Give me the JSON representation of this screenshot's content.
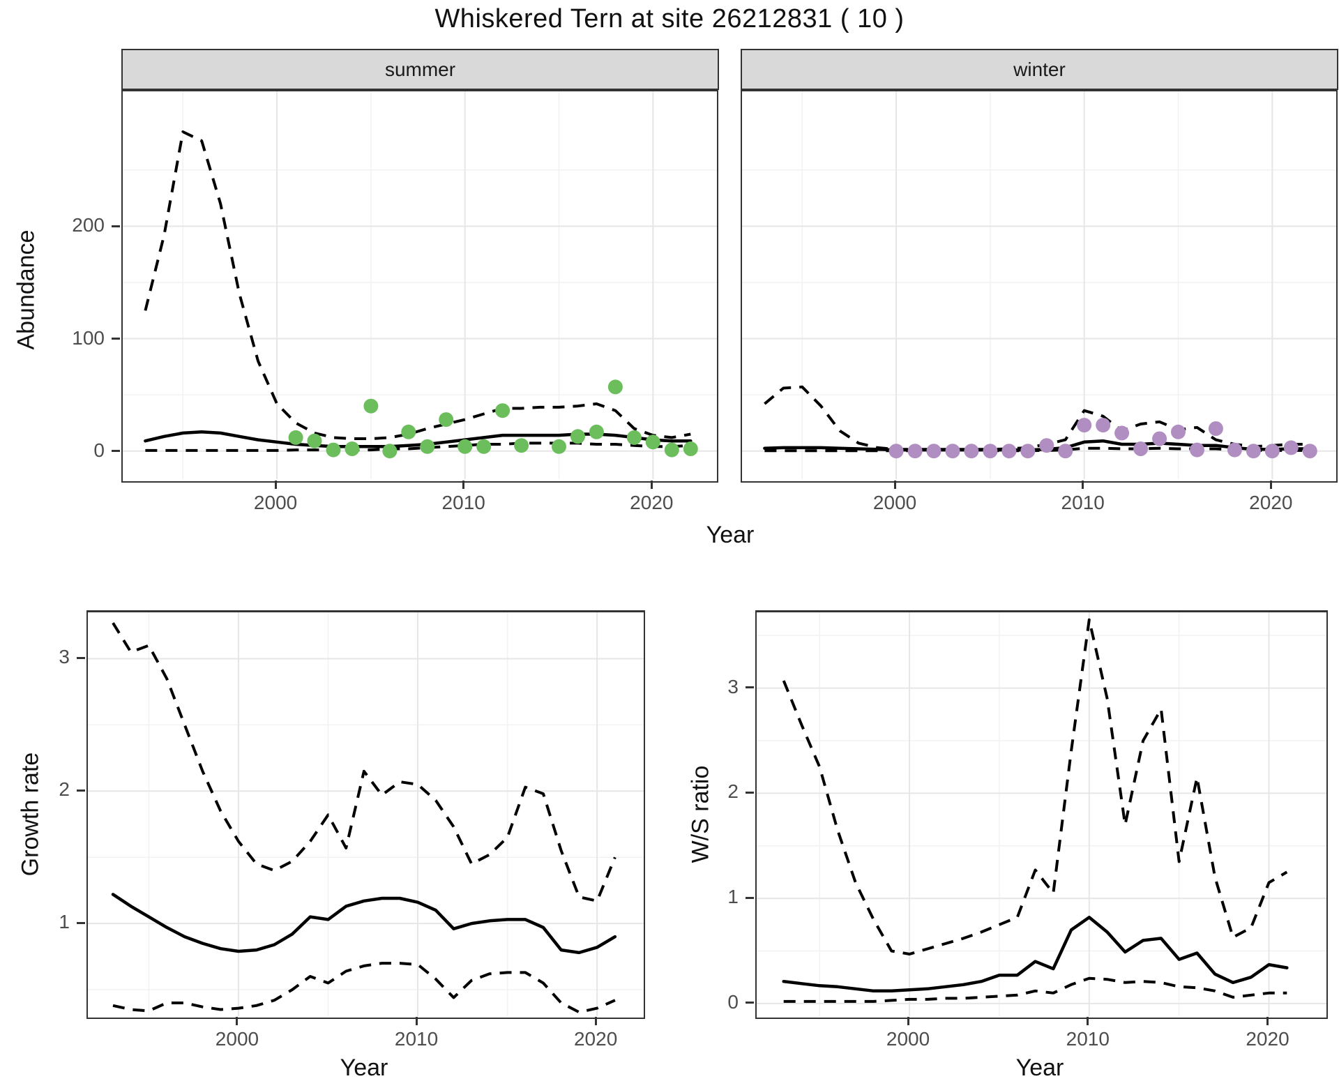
{
  "title": "Whiskered Tern at site 26212831 ( 10 )",
  "colors": {
    "summer_point": "#6BBE5B",
    "winter_point": "#B18EC1",
    "line": "#000000",
    "strip_background": "#D9D9D9",
    "panel_border": "#333333",
    "grid_major": "#E6E6E6",
    "grid_minor": "#F2F2F2",
    "tick_label": "#4D4D4D"
  },
  "facets": [
    {
      "label": "summer"
    },
    {
      "label": "winter"
    }
  ],
  "axes": {
    "abundance": {
      "label": "Abundance",
      "ticks": [
        "0",
        "100",
        "200"
      ],
      "tick_values": [
        0,
        100,
        200
      ]
    },
    "year_top": {
      "label": "Year",
      "ticks": [
        "2000",
        "2010",
        "2020"
      ],
      "tick_values": [
        2000,
        2010,
        2020
      ]
    },
    "growth": {
      "label": "Growth rate",
      "ticks": [
        "1",
        "2",
        "3"
      ],
      "tick_values": [
        1,
        2,
        3
      ]
    },
    "ws": {
      "label": "W/S ratio",
      "ticks": [
        "0",
        "1",
        "2",
        "3"
      ],
      "tick_values": [
        0,
        1,
        2,
        3
      ]
    },
    "year_growth": {
      "label": "Year",
      "ticks": [
        "2000",
        "2010",
        "2020"
      ],
      "tick_values": [
        2000,
        2010,
        2020
      ]
    },
    "year_ws": {
      "label": "Year",
      "ticks": [
        "2000",
        "2010",
        "2020"
      ],
      "tick_values": [
        2000,
        2010,
        2020
      ]
    }
  },
  "chart_data": [
    {
      "type": "line",
      "facet": "summer",
      "title": "Abundance, summer",
      "xlabel": "Year",
      "ylabel": "Abundance",
      "xlim": [
        1991.8,
        2023.4
      ],
      "ylim": [
        -25,
        320
      ],
      "x_major": [
        2000,
        2010,
        2020
      ],
      "x_minor": [
        1995,
        2005,
        2015
      ],
      "y_major": [
        0,
        100,
        200
      ],
      "y_minor": [
        50,
        150,
        250
      ],
      "x": [
        1993,
        1994,
        1995,
        1996,
        1997,
        1998,
        1999,
        2000,
        2001,
        2002,
        2003,
        2004,
        2005,
        2006,
        2007,
        2008,
        2009,
        2010,
        2011,
        2012,
        2013,
        2014,
        2015,
        2016,
        2017,
        2018,
        2019,
        2020,
        2021,
        2022
      ],
      "series": [
        {
          "name": "upper_ci",
          "style": "dashed",
          "values": [
            125,
            192,
            284,
            276,
            220,
            140,
            80,
            42,
            25,
            16,
            12,
            11,
            11,
            12,
            15,
            20,
            24,
            28,
            33,
            38,
            38,
            39,
            39,
            40,
            42,
            36,
            20,
            14,
            12,
            15
          ]
        },
        {
          "name": "mean",
          "style": "solid",
          "values": [
            9,
            13,
            16,
            17,
            16,
            13,
            10,
            8,
            6,
            5,
            4,
            4,
            4,
            4,
            5,
            6,
            8,
            10,
            12,
            14,
            14,
            14,
            14,
            15,
            15,
            14,
            12,
            10,
            9,
            9
          ]
        },
        {
          "name": "lower_ci",
          "style": "dashed",
          "values": [
            0.5,
            0.5,
            0.5,
            0.5,
            0.5,
            0.5,
            0.5,
            0.5,
            1,
            1,
            1,
            1,
            1,
            2,
            2,
            3,
            4,
            5,
            6,
            6,
            7,
            7,
            7,
            7,
            6,
            6,
            5,
            4,
            4,
            5
          ]
        }
      ],
      "points": {
        "name": "observed-counts-summer",
        "color": "#6BBE5B",
        "x": [
          2001,
          2002,
          2003,
          2004,
          2005,
          2006,
          2007,
          2008,
          2009,
          2010,
          2011,
          2012,
          2013,
          2015,
          2016,
          2017,
          2018,
          2019,
          2020,
          2021,
          2022
        ],
        "y": [
          12,
          9,
          1,
          2,
          40,
          0,
          17,
          4,
          28,
          4,
          4,
          36,
          5,
          4,
          13,
          17,
          57,
          12,
          8,
          1,
          2
        ]
      }
    },
    {
      "type": "line",
      "facet": "winter",
      "title": "Abundance, winter",
      "xlabel": "Year",
      "ylabel": "Abundance",
      "xlim": [
        1991.8,
        2023.4
      ],
      "ylim": [
        -25,
        320
      ],
      "x_major": [
        2000,
        2010,
        2020
      ],
      "x_minor": [
        1995,
        2005,
        2015
      ],
      "y_major": [
        0,
        100,
        200
      ],
      "y_minor": [
        50,
        150,
        250
      ],
      "x": [
        1993,
        1994,
        1995,
        1996,
        1997,
        1998,
        1999,
        2000,
        2001,
        2002,
        2003,
        2004,
        2005,
        2006,
        2007,
        2008,
        2009,
        2010,
        2011,
        2012,
        2013,
        2014,
        2015,
        2016,
        2017,
        2018,
        2019,
        2020,
        2021,
        2022
      ],
      "series": [
        {
          "name": "upper_ci",
          "style": "dashed",
          "values": [
            42,
            56,
            57,
            40,
            18,
            7,
            3,
            1.5,
            1.5,
            1.5,
            1.5,
            1.5,
            1.5,
            2,
            3,
            6,
            10,
            36,
            31,
            18,
            24,
            26,
            19,
            21,
            10,
            6,
            4,
            5,
            6,
            6
          ]
        },
        {
          "name": "mean",
          "style": "solid",
          "values": [
            2.5,
            3,
            3,
            3,
            2.5,
            2,
            1.5,
            1,
            1,
            1,
            1,
            1,
            1,
            1,
            1,
            1.5,
            3,
            8,
            9,
            6,
            6,
            7,
            6,
            5,
            5,
            3,
            1.5,
            1.5,
            2,
            2
          ]
        },
        {
          "name": "lower_ci",
          "style": "dashed",
          "values": [
            0.3,
            0.3,
            0.3,
            0.3,
            0.3,
            0.3,
            0.3,
            0.3,
            0.3,
            0.3,
            0.3,
            0.3,
            0.3,
            0.3,
            0.3,
            0.5,
            1,
            2.5,
            2.5,
            2,
            2,
            2.5,
            2,
            2,
            2,
            1,
            0.5,
            0.5,
            0.5,
            0.5
          ]
        }
      ],
      "points": {
        "name": "observed-counts-winter",
        "color": "#B18EC1",
        "x": [
          2000,
          2001,
          2002,
          2003,
          2004,
          2005,
          2006,
          2007,
          2008,
          2009,
          2010,
          2011,
          2012,
          2013,
          2014,
          2015,
          2016,
          2017,
          2018,
          2019,
          2020,
          2021,
          2022
        ],
        "y": [
          0,
          0,
          0,
          0,
          0,
          0,
          0,
          0,
          5,
          0,
          23,
          23,
          16,
          2,
          11,
          17,
          1,
          20,
          1,
          0,
          0,
          3,
          0
        ]
      }
    },
    {
      "type": "line",
      "facet": null,
      "title": "Growth rate",
      "xlabel": "Year",
      "ylabel": "Growth rate",
      "xlim": [
        1991.6,
        2022.6
      ],
      "ylim": [
        0.3,
        3.35
      ],
      "x_major": [
        2000,
        2010,
        2020
      ],
      "x_minor": [
        1995,
        2005,
        2015
      ],
      "y_major": [
        1,
        2,
        3
      ],
      "y_minor": [
        0.5,
        1.5,
        2.5
      ],
      "x": [
        1993,
        1994,
        1995,
        1996,
        1997,
        1998,
        1999,
        2000,
        2001,
        2002,
        2003,
        2004,
        2005,
        2006,
        2007,
        2008,
        2009,
        2010,
        2011,
        2012,
        2013,
        2014,
        2015,
        2016,
        2017,
        2018,
        2019,
        2020,
        2021
      ],
      "series": [
        {
          "name": "upper_ci",
          "style": "dashed",
          "values": [
            3.27,
            3.05,
            3.1,
            2.85,
            2.5,
            2.15,
            1.85,
            1.62,
            1.45,
            1.4,
            1.47,
            1.62,
            1.82,
            1.57,
            2.15,
            1.97,
            2.07,
            2.05,
            1.93,
            1.73,
            1.45,
            1.52,
            1.65,
            2.03,
            1.98,
            1.55,
            1.2,
            1.17,
            1.5
          ]
        },
        {
          "name": "mean",
          "style": "solid",
          "values": [
            1.22,
            1.13,
            1.05,
            0.97,
            0.9,
            0.85,
            0.81,
            0.79,
            0.8,
            0.84,
            0.92,
            1.05,
            1.03,
            1.13,
            1.17,
            1.19,
            1.19,
            1.16,
            1.1,
            0.96,
            1.0,
            1.02,
            1.03,
            1.03,
            0.97,
            0.8,
            0.78,
            0.82,
            0.9
          ]
        },
        {
          "name": "lower_ci",
          "style": "dashed",
          "values": [
            0.38,
            0.35,
            0.34,
            0.4,
            0.4,
            0.37,
            0.35,
            0.36,
            0.38,
            0.42,
            0.5,
            0.6,
            0.55,
            0.64,
            0.68,
            0.7,
            0.7,
            0.69,
            0.58,
            0.44,
            0.57,
            0.62,
            0.63,
            0.63,
            0.55,
            0.4,
            0.33,
            0.36,
            0.42
          ]
        }
      ],
      "points": null
    },
    {
      "type": "line",
      "facet": null,
      "title": "W/S ratio",
      "xlabel": "Year",
      "ylabel": "W/S ratio",
      "xlim": [
        1991.5,
        2023.2
      ],
      "ylim": [
        -0.12,
        3.72
      ],
      "x_major": [
        2000,
        2010,
        2020
      ],
      "x_minor": [
        1995,
        2005,
        2015
      ],
      "y_major": [
        0,
        1,
        2,
        3
      ],
      "y_minor": [
        0.5,
        1.5,
        2.5,
        3.5
      ],
      "x": [
        1993,
        1994,
        1995,
        1996,
        1997,
        1998,
        1999,
        2000,
        2001,
        2002,
        2003,
        2004,
        2005,
        2006,
        2007,
        2008,
        2009,
        2010,
        2011,
        2012,
        2013,
        2014,
        2015,
        2016,
        2017,
        2018,
        2019,
        2020,
        2021
      ],
      "series": [
        {
          "name": "upper_ci",
          "style": "dashed",
          "values": [
            3.07,
            2.65,
            2.25,
            1.65,
            1.15,
            0.8,
            0.5,
            0.47,
            0.52,
            0.57,
            0.62,
            0.68,
            0.75,
            0.82,
            1.27,
            1.05,
            2.4,
            3.65,
            2.9,
            1.7,
            2.5,
            2.8,
            1.35,
            2.15,
            1.2,
            0.63,
            0.72,
            1.15,
            1.25
          ]
        },
        {
          "name": "mean",
          "style": "solid",
          "values": [
            0.21,
            0.19,
            0.17,
            0.16,
            0.14,
            0.12,
            0.12,
            0.13,
            0.14,
            0.16,
            0.18,
            0.21,
            0.27,
            0.27,
            0.4,
            0.33,
            0.7,
            0.82,
            0.68,
            0.49,
            0.6,
            0.62,
            0.42,
            0.48,
            0.28,
            0.2,
            0.25,
            0.37,
            0.34
          ]
        },
        {
          "name": "lower_ci",
          "style": "dashed",
          "values": [
            0.02,
            0.02,
            0.02,
            0.02,
            0.02,
            0.02,
            0.03,
            0.04,
            0.04,
            0.05,
            0.05,
            0.06,
            0.07,
            0.08,
            0.12,
            0.1,
            0.18,
            0.24,
            0.23,
            0.2,
            0.21,
            0.2,
            0.16,
            0.15,
            0.12,
            0.06,
            0.08,
            0.1,
            0.1
          ]
        }
      ],
      "points": null
    }
  ]
}
